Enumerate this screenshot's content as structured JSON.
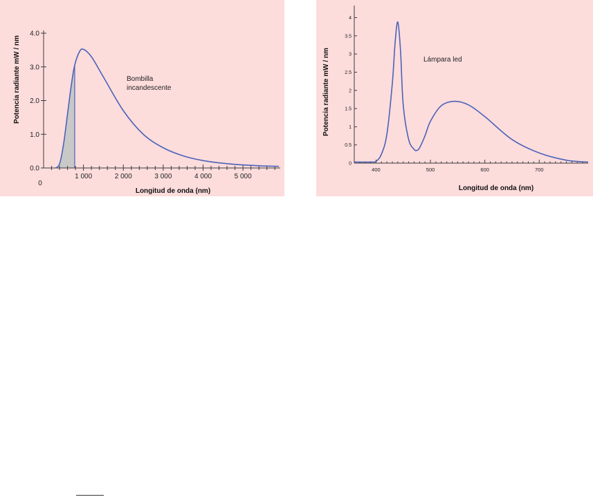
{
  "chart_data": [
    {
      "type": "line",
      "title": "",
      "xlabel": "Longitud de onda (nm)",
      "ylabel": "Potencia radiante mW / nm",
      "xlim": [
        0,
        5900
      ],
      "ylim": [
        0,
        4.0
      ],
      "x_ticks": [
        1000,
        2000,
        3000,
        4000,
        5000
      ],
      "x_tick_labels": [
        "1 000",
        "2 000",
        "3 000",
        "4 000",
        "5 000"
      ],
      "x_origin_label": "0",
      "y_ticks": [
        0,
        1,
        2,
        3,
        4
      ],
      "y_tick_labels": [
        "0.0",
        "1.0",
        "2.0",
        "3.0",
        "4.0"
      ],
      "annotation": "Bombilla incandescente",
      "annotation_lines": [
        "Bombilla",
        "incandescente"
      ],
      "shaded_region": [
        380,
        780
      ],
      "colors": {
        "curve": "#4a62b8",
        "shade": "#c8c8c8",
        "background": "#fddcdc"
      },
      "series": [
        {
          "x": [
            300,
            400,
            500,
            600,
            700,
            780,
            900,
            1000,
            1200,
            1500,
            2000,
            2500,
            3000,
            3500,
            4000,
            4500,
            5000,
            5500,
            5900
          ],
          "y": [
            0.0,
            0.12,
            0.7,
            1.6,
            2.5,
            3.05,
            3.45,
            3.52,
            3.3,
            2.7,
            1.7,
            1.0,
            0.6,
            0.36,
            0.22,
            0.14,
            0.09,
            0.06,
            0.05
          ]
        }
      ]
    },
    {
      "type": "line",
      "title": "",
      "xlabel": "Longitud de onda (nm)",
      "ylabel": "Potencia radiante mW / nm",
      "xlim": [
        360,
        790
      ],
      "ylim": [
        0,
        4.2
      ],
      "x_ticks": [
        400,
        500,
        600,
        700
      ],
      "x_tick_labels": [
        "400",
        "500",
        "600",
        "700"
      ],
      "y_ticks": [
        0,
        0.5,
        1,
        1.5,
        2,
        2.5,
        3,
        3.5,
        4
      ],
      "y_tick_labels": [
        "0",
        "0.5",
        "1",
        "1.5",
        "2",
        "2.5",
        "3",
        "3.5",
        "4"
      ],
      "annotation": "Lámpara led",
      "colors": {
        "curve": "#4a62b8",
        "background": "#fddcdc"
      },
      "series": [
        {
          "x": [
            360,
            390,
            400,
            410,
            420,
            430,
            435,
            440,
            445,
            450,
            460,
            470,
            475,
            480,
            490,
            500,
            520,
            545,
            570,
            600,
            650,
            700,
            750,
            790
          ],
          "y": [
            0.03,
            0.03,
            0.05,
            0.25,
            0.8,
            2.2,
            3.3,
            3.88,
            3.1,
            1.6,
            0.65,
            0.38,
            0.35,
            0.42,
            0.75,
            1.15,
            1.58,
            1.7,
            1.6,
            1.28,
            0.65,
            0.28,
            0.08,
            0.03
          ]
        }
      ]
    }
  ]
}
